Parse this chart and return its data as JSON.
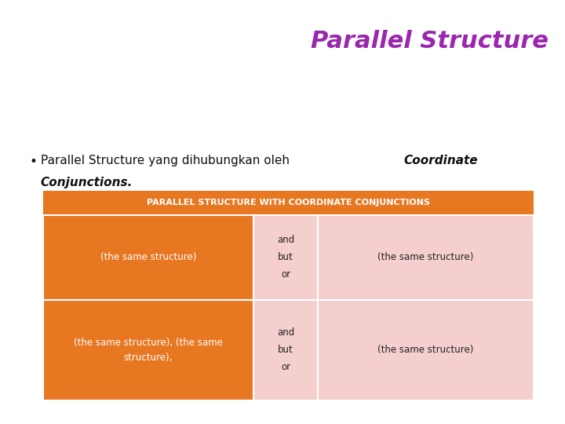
{
  "title": "Parallel Structure",
  "title_color": "#9B27AF",
  "title_fontsize": 22,
  "bg_color": "#FFFFFF",
  "table_header_text": "PARALLEL STRUCTURE WITH COORDINATE CONJUNCTIONS",
  "table_header_bg": "#E87722",
  "table_header_text_color": "#FFFFFF",
  "table_header_fontsize": 8,
  "row1_col1_text": "(the same structure)",
  "row1_col2_text": "and\nbut\nor",
  "row1_col3_text": "(the same structure)",
  "row2_col1_line1": "(the same structure), (the same",
  "row2_col1_line2": "structure),",
  "row2_col2_text": "and\nbut\nor",
  "row2_col3_text": "(the same structure)",
  "col1_bg": "#E87722",
  "col1_text_color": "#FFFFFF",
  "col2_bg": "#F5CECE",
  "col2_text_color": "#222222",
  "col3_bg": "#F5CECE",
  "col3_text_color": "#222222",
  "cell_fontsize": 8.5,
  "bullet_fontsize": 11,
  "bullet_normal": "Parallel Structure yang dihubungkan oleh ",
  "bullet_bold1": "Coordinate",
  "bullet_bold2": "Conjunctions."
}
